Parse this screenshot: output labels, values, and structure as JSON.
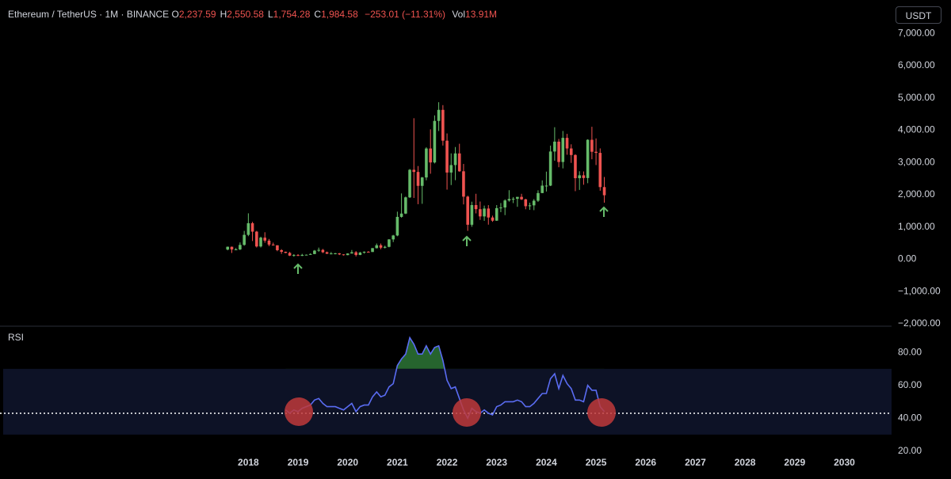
{
  "chart_data": [
    {
      "type": "candlestick",
      "title": "Ethereum / TetherUS · 1M · BINANCE",
      "ohlc": [
        {
          "label": "O",
          "text": "2,237.59"
        },
        {
          "label": "H",
          "text": "2,550.58"
        },
        {
          "label": "L",
          "text": "1,754.28"
        },
        {
          "label": "C",
          "text": "1,984.58"
        }
      ],
      "change": "−253.01 (−11.31%)",
      "volume": {
        "label": "Vol",
        "text": "13.91M"
      },
      "currency": "USDT",
      "up_color": "#66bb6a",
      "down_color": "#ef5350",
      "xlim": [
        2013,
        2030.95
      ],
      "ylim": [
        -2050,
        7300
      ],
      "yticks": [
        {
          "value": 7000,
          "label": "7,000.00"
        },
        {
          "value": 6000,
          "label": "6,000.00"
        },
        {
          "value": 5000,
          "label": "5,000.00"
        },
        {
          "value": 4000,
          "label": "4,000.00"
        },
        {
          "value": 3000,
          "label": "3,000.00"
        },
        {
          "value": 2000,
          "label": "2,000.00"
        },
        {
          "value": 1000,
          "label": "1,000.00"
        },
        {
          "value": 0,
          "label": "0.00"
        },
        {
          "value": -1000,
          "label": "−1,000.00"
        },
        {
          "value": -2000,
          "label": "−2,000.00"
        }
      ],
      "x": [
        2017.583,
        2017.667,
        2017.75,
        2017.833,
        2017.917,
        2018,
        2018.083,
        2018.167,
        2018.25,
        2018.333,
        2018.417,
        2018.5,
        2018.583,
        2018.667,
        2018.75,
        2018.833,
        2018.917,
        2019,
        2019.083,
        2019.167,
        2019.25,
        2019.333,
        2019.417,
        2019.5,
        2019.583,
        2019.667,
        2019.75,
        2019.833,
        2019.917,
        2020,
        2020.083,
        2020.167,
        2020.25,
        2020.333,
        2020.417,
        2020.5,
        2020.583,
        2020.667,
        2020.75,
        2020.833,
        2020.917,
        2021,
        2021.083,
        2021.167,
        2021.25,
        2021.333,
        2021.417,
        2021.5,
        2021.583,
        2021.667,
        2021.75,
        2021.833,
        2021.917,
        2022,
        2022.083,
        2022.167,
        2022.25,
        2022.333,
        2022.417,
        2022.5,
        2022.583,
        2022.667,
        2022.75,
        2022.833,
        2022.917,
        2023,
        2023.083,
        2023.167,
        2023.25,
        2023.333,
        2023.417,
        2023.5,
        2023.583,
        2023.667,
        2023.75,
        2023.833,
        2023.917,
        2024,
        2024.083,
        2024.167,
        2024.25,
        2024.333,
        2024.417,
        2024.5,
        2024.583,
        2024.667,
        2024.75,
        2024.833,
        2024.917,
        2025,
        2025.083,
        2025.167
      ],
      "open": [
        301,
        388,
        303,
        305,
        445,
        757,
        1118,
        857,
        397,
        670,
        578,
        455,
        433,
        282,
        232,
        197,
        113,
        131,
        106,
        135,
        141,
        162,
        268,
        291,
        218,
        172,
        180,
        183,
        152,
        129,
        179,
        217,
        133,
        206,
        231,
        226,
        345,
        434,
        359,
        386,
        616,
        737,
        1314,
        1416,
        1919,
        2773,
        2707,
        2275,
        2536,
        3433,
        3001,
        4288,
        4631,
        3676,
        2688,
        2920,
        3281,
        2727,
        1941,
        1070,
        1680,
        1553,
        1328,
        1572,
        1295,
        1196,
        1585,
        1605,
        1822,
        1869,
        1874,
        1934,
        1857,
        1645,
        1671,
        1815,
        2052,
        2282,
        2283,
        3340,
        3646,
        3015,
        3763,
        3434,
        3231,
        2513,
        2602,
        2518,
        3703,
        3332,
        3298,
        2237.59
      ],
      "high": [
        394,
        395,
        349,
        522,
        880,
        1424,
        1160,
        880,
        700,
        838,
        630,
        516,
        435,
        313,
        237,
        228,
        160,
        160,
        168,
        148,
        184,
        288,
        362,
        320,
        239,
        225,
        199,
        195,
        154,
        185,
        288,
        253,
        228,
        245,
        253,
        349,
        488,
        488,
        420,
        622,
        756,
        1476,
        2041,
        1943,
        2798,
        4372,
        2890,
        2551,
        3472,
        4027,
        4460,
        4868,
        4778,
        3900,
        3282,
        3479,
        3580,
        2955,
        1971,
        1785,
        2030,
        1790,
        1664,
        1678,
        1352,
        1680,
        1743,
        1857,
        2141,
        1928,
        1931,
        2029,
        1875,
        1754,
        1865,
        2138,
        2445,
        2717,
        3523,
        4093,
        3730,
        3977,
        3887,
        3563,
        3255,
        2728,
        2722,
        3720,
        4107,
        3745,
        3436,
        2550.58
      ],
      "low": [
        278,
        197,
        282,
        285,
        420,
        716,
        565,
        365,
        365,
        513,
        405,
        424,
        250,
        167,
        189,
        101,
        81,
        102,
        102,
        125,
        140,
        157,
        230,
        192,
        162,
        152,
        153,
        131,
        116,
        126,
        177,
        86,
        129,
        176,
        215,
        225,
        334,
        309,
        335,
        371,
        533,
        715,
        1290,
        1400,
        1900,
        1900,
        1707,
        1719,
        2448,
        2651,
        2970,
        3975,
        3525,
        2159,
        2300,
        2451,
        2712,
        1700,
        881,
        1007,
        1422,
        1220,
        1191,
        1073,
        1160,
        1191,
        1460,
        1368,
        1785,
        1741,
        1626,
        1837,
        1550,
        1531,
        1522,
        1777,
        2052,
        2100,
        2268,
        3055,
        2853,
        2817,
        3240,
        2987,
        2111,
        2150,
        2310,
        2358,
        3100,
        2920,
        2125,
        1754.28
      ],
      "close": [
        388,
        303,
        305,
        445,
        757,
        1118,
        857,
        397,
        670,
        578,
        455,
        433,
        282,
        232,
        197,
        113,
        131,
        106,
        135,
        141,
        162,
        268,
        291,
        218,
        172,
        180,
        183,
        152,
        129,
        179,
        217,
        133,
        206,
        231,
        226,
        345,
        434,
        359,
        386,
        616,
        737,
        1314,
        1416,
        1919,
        2773,
        2707,
        2275,
        2536,
        3433,
        3001,
        4288,
        4631,
        3676,
        2688,
        2920,
        3281,
        2727,
        1941,
        1070,
        1680,
        1553,
        1328,
        1572,
        1295,
        1196,
        1585,
        1605,
        1822,
        1869,
        1874,
        1934,
        1857,
        1645,
        1671,
        1815,
        2052,
        2282,
        2283,
        3340,
        3646,
        3015,
        3763,
        3434,
        3231,
        2513,
        2602,
        2518,
        3703,
        3332,
        3298,
        2237.59,
        1984.58
      ]
    },
    {
      "type": "line",
      "title": "RSI",
      "color": "#5a6cf2",
      "band": [
        30,
        70
      ],
      "band_color": "#0d1226",
      "overbought_color": "#2f7d3a",
      "reference_line": 43,
      "xlim": [
        2013,
        2030.95
      ],
      "xticks": [
        2018,
        2019,
        2020,
        2021,
        2022,
        2023,
        2024,
        2025,
        2026,
        2027,
        2028,
        2029,
        2030
      ],
      "ylim": [
        16,
        95
      ],
      "yticks": [
        {
          "value": 80,
          "label": "80.00"
        },
        {
          "value": 60,
          "label": "60.00"
        },
        {
          "value": 40,
          "label": "40.00"
        },
        {
          "value": 20,
          "label": "20.00"
        }
      ],
      "x": [
        2018.75,
        2018.833,
        2018.917,
        2019,
        2019.083,
        2019.167,
        2019.25,
        2019.333,
        2019.417,
        2019.5,
        2019.583,
        2019.667,
        2019.75,
        2019.833,
        2019.917,
        2020,
        2020.083,
        2020.167,
        2020.25,
        2020.333,
        2020.417,
        2020.5,
        2020.583,
        2020.667,
        2020.75,
        2020.833,
        2020.917,
        2021,
        2021.083,
        2021.167,
        2021.25,
        2021.333,
        2021.417,
        2021.5,
        2021.583,
        2021.667,
        2021.75,
        2021.833,
        2021.917,
        2022,
        2022.083,
        2022.167,
        2022.25,
        2022.333,
        2022.417,
        2022.5,
        2022.583,
        2022.667,
        2022.75,
        2022.833,
        2022.917,
        2023,
        2023.083,
        2023.167,
        2023.25,
        2023.333,
        2023.417,
        2023.5,
        2023.583,
        2023.667,
        2023.75,
        2023.833,
        2023.917,
        2024,
        2024.083,
        2024.167,
        2024.25,
        2024.333,
        2024.417,
        2024.5,
        2024.583,
        2024.667,
        2024.75,
        2024.833,
        2024.917,
        2025,
        2025.083,
        2025.167
      ],
      "values": [
        45,
        43,
        45,
        44,
        46,
        47,
        48,
        51,
        52,
        49,
        47,
        47,
        47,
        46,
        45,
        47,
        49,
        44,
        47,
        48,
        48,
        53,
        56,
        53,
        54,
        59,
        61,
        72,
        76,
        79,
        89,
        85,
        79,
        79,
        84,
        79,
        83,
        84,
        75,
        63,
        58,
        59,
        52,
        45,
        40,
        46,
        44,
        43,
        45,
        43,
        42,
        47,
        48,
        50,
        50,
        50,
        51,
        50,
        47,
        47,
        49,
        52,
        55,
        55,
        64,
        67,
        58,
        66,
        61,
        58,
        51,
        51,
        50,
        60,
        57,
        57,
        47,
        44
      ]
    }
  ]
}
